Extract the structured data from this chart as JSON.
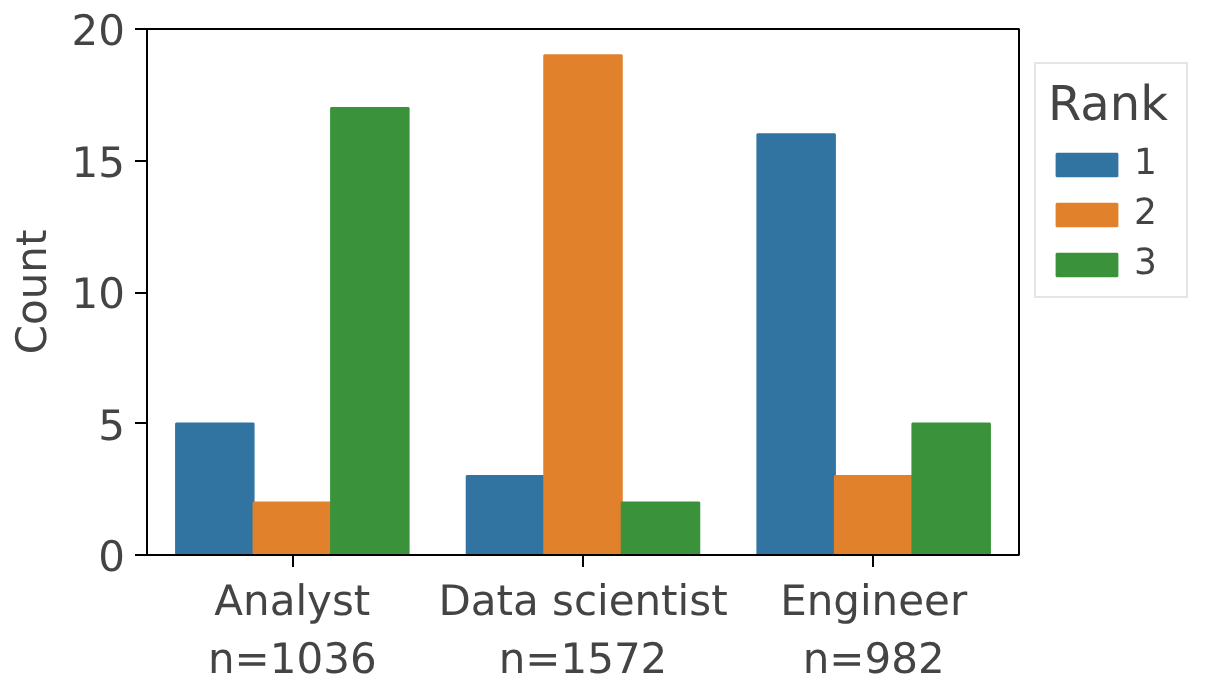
{
  "chart_data": {
    "type": "bar",
    "ylabel": "Count",
    "legend_title": "Rank",
    "categories": [
      "Analyst\nn=1036",
      "Data scientist\nn=1572",
      "Engineer\nn=982"
    ],
    "series": [
      {
        "name": "1",
        "color": "#3274a1",
        "values": [
          5,
          3,
          16
        ]
      },
      {
        "name": "2",
        "color": "#e1812c",
        "values": [
          2,
          19,
          3
        ]
      },
      {
        "name": "3",
        "color": "#3a923a",
        "values": [
          17,
          2,
          5
        ]
      }
    ],
    "ylim": [
      0,
      20
    ],
    "yticks": [
      0,
      5,
      10,
      15,
      20
    ],
    "legend": "right",
    "grid": false
  }
}
